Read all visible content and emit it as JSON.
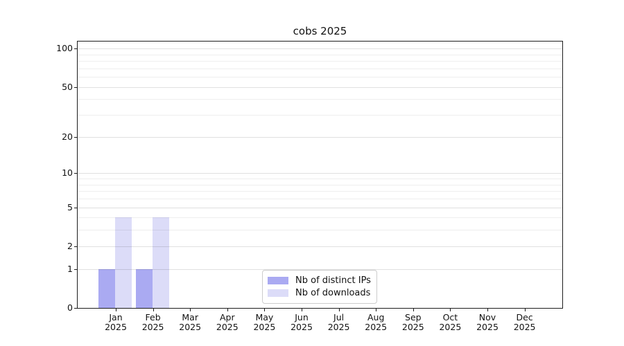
{
  "title": "cobs 2025",
  "colors": {
    "distinct_ips_bar": "#aaaaf2",
    "downloads_bar": "#dcdcf8",
    "spine": "#1c1c1c",
    "background": "#ffffff"
  },
  "chart_data": {
    "type": "bar",
    "title": "cobs 2025",
    "months": [
      "Jan",
      "Feb",
      "Mar",
      "Apr",
      "May",
      "Jun",
      "Jul",
      "Aug",
      "Sep",
      "Oct",
      "Nov",
      "Dec"
    ],
    "year": "2025",
    "series": [
      {
        "name": "Nb of distinct IPs",
        "color": "#aaaaf2",
        "values": [
          1,
          1,
          0,
          0,
          0,
          0,
          0,
          0,
          0,
          0,
          0,
          0
        ]
      },
      {
        "name": "Nb of downloads",
        "color": "#dcdcf8",
        "values": [
          4,
          4,
          0,
          0,
          0,
          0,
          0,
          0,
          0,
          0,
          0,
          0
        ]
      }
    ],
    "yscale": "log1p",
    "ylim": [
      0,
      113.5
    ],
    "yticks": [
      0,
      1,
      2,
      5,
      10,
      20,
      50,
      100
    ],
    "minor_gridlines": [
      3,
      4,
      6,
      7,
      8,
      9,
      30,
      40,
      60,
      70,
      80,
      90
    ],
    "grid": true,
    "legend_position": "inside-bottom-center",
    "xlabel": "",
    "ylabel": ""
  },
  "legend": {
    "items": [
      {
        "label": "Nb of distinct IPs",
        "color": "#aaaaf2"
      },
      {
        "label": "Nb of downloads",
        "color": "#dcdcf8"
      }
    ]
  }
}
